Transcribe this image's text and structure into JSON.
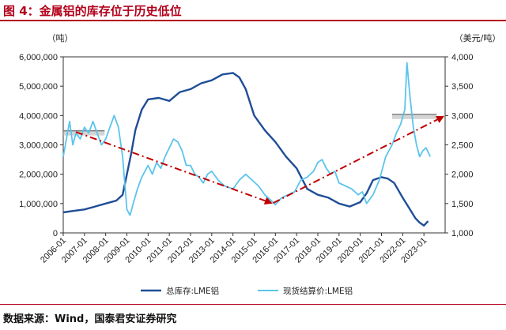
{
  "header": {
    "title": "图 4：金属铝的库存位于历史低位"
  },
  "footer": {
    "source": "数据来源：Wind，国泰君安证券研究"
  },
  "colors": {
    "title": "#b3001b",
    "inventory": "#1f4e96",
    "price": "#5bc4ec",
    "trend": "#c00000",
    "band": "#b0b0b0"
  },
  "chart_data": {
    "type": "line",
    "left_axis": {
      "unit": "（吨）",
      "min": 0,
      "max": 6000000,
      "ticks": [
        0,
        1000000,
        2000000,
        3000000,
        4000000,
        5000000,
        6000000
      ],
      "tick_labels": [
        "0",
        "1,000,000",
        "2,000,000",
        "3,000,000",
        "4,000,000",
        "5,000,000",
        "6,000,000"
      ]
    },
    "right_axis": {
      "unit": "（美元/吨）",
      "min": 1000,
      "max": 4000,
      "ticks": [
        1000,
        1500,
        2000,
        2500,
        3000,
        3500,
        4000
      ],
      "tick_labels": [
        "1,000",
        "1,500",
        "2,000",
        "2,500",
        "3,000",
        "3,500",
        "4,000"
      ]
    },
    "x_axis": {
      "min": 2006.0,
      "max": 2024.0,
      "ticks": [
        2006,
        2007,
        2008,
        2009,
        2010,
        2011,
        2012,
        2013,
        2014,
        2015,
        2016,
        2017,
        2018,
        2019,
        2020,
        2021,
        2022,
        2023
      ],
      "tick_labels": [
        "2006-01",
        "2007-01",
        "2008-01",
        "2009-01",
        "2010-01",
        "2011-01",
        "2012-01",
        "2013-01",
        "2014-01",
        "2015-01",
        "2016-01",
        "2017-01",
        "2018-01",
        "2019-01",
        "2020-01",
        "2021-01",
        "2022-01",
        "2023-01"
      ]
    },
    "legend": {
      "placement": "bottom"
    },
    "series": [
      {
        "name": "总库存:LME铝",
        "axis": "left",
        "x": [
          2006.0,
          2006.5,
          2007.0,
          2007.5,
          2008.0,
          2008.5,
          2008.8,
          2009.0,
          2009.2,
          2009.4,
          2009.7,
          2010.0,
          2010.5,
          2011.0,
          2011.5,
          2012.0,
          2012.5,
          2013.0,
          2013.5,
          2014.0,
          2014.3,
          2014.6,
          2015.0,
          2015.5,
          2016.0,
          2016.5,
          2017.0,
          2017.5,
          2018.0,
          2018.5,
          2019.0,
          2019.5,
          2020.0,
          2020.3,
          2020.6,
          2021.0,
          2021.3,
          2021.6,
          2022.0,
          2022.3,
          2022.6,
          2022.8,
          2023.0,
          2023.2
        ],
        "y": [
          700000,
          750000,
          800000,
          900000,
          1000000,
          1100000,
          1300000,
          2000000,
          2700000,
          3500000,
          4200000,
          4550000,
          4600000,
          4500000,
          4800000,
          4900000,
          5100000,
          5200000,
          5400000,
          5450000,
          5300000,
          4900000,
          4000000,
          3500000,
          3100000,
          2600000,
          2200000,
          1500000,
          1300000,
          1200000,
          1000000,
          900000,
          1050000,
          1350000,
          1800000,
          1900000,
          1850000,
          1700000,
          1200000,
          850000,
          500000,
          350000,
          250000,
          400000
        ]
      },
      {
        "name": "现货结算价:LME铝",
        "axis": "right",
        "x": [
          2006.0,
          2006.15,
          2006.3,
          2006.45,
          2006.6,
          2006.8,
          2007.0,
          2007.2,
          2007.4,
          2007.6,
          2007.8,
          2008.0,
          2008.2,
          2008.4,
          2008.6,
          2008.8,
          2009.0,
          2009.15,
          2009.3,
          2009.5,
          2009.7,
          2010.0,
          2010.2,
          2010.4,
          2010.6,
          2010.8,
          2011.0,
          2011.2,
          2011.4,
          2011.6,
          2011.8,
          2012.0,
          2012.2,
          2012.4,
          2012.6,
          2012.8,
          2013.0,
          2013.3,
          2013.6,
          2014.0,
          2014.3,
          2014.6,
          2014.9,
          2015.2,
          2015.5,
          2015.8,
          2016.0,
          2016.3,
          2016.6,
          2016.9,
          2017.2,
          2017.5,
          2017.8,
          2018.0,
          2018.2,
          2018.4,
          2018.6,
          2018.8,
          2019.0,
          2019.3,
          2019.6,
          2019.9,
          2020.1,
          2020.3,
          2020.6,
          2020.9,
          2021.2,
          2021.5,
          2021.7,
          2021.9,
          2022.1,
          2022.2,
          2022.35,
          2022.5,
          2022.65,
          2022.8,
          2022.95,
          2023.1,
          2023.3
        ],
        "y": [
          2300,
          2600,
          2900,
          2500,
          2700,
          2600,
          2800,
          2700,
          2900,
          2700,
          2500,
          2600,
          2800,
          3000,
          2800,
          2300,
          1400,
          1300,
          1500,
          1750,
          1950,
          2150,
          2000,
          2200,
          2100,
          2300,
          2450,
          2600,
          2550,
          2400,
          2150,
          2150,
          2000,
          1950,
          1850,
          2000,
          2050,
          1900,
          1800,
          1750,
          1900,
          2000,
          1900,
          1800,
          1650,
          1550,
          1480,
          1600,
          1650,
          1700,
          1900,
          1950,
          2050,
          2200,
          2250,
          2100,
          2000,
          2050,
          1850,
          1800,
          1750,
          1650,
          1700,
          1500,
          1650,
          1900,
          2300,
          2500,
          2700,
          2850,
          3100,
          3900,
          3300,
          2800,
          2500,
          2300,
          2400,
          2450,
          2300
        ]
      }
    ]
  }
}
